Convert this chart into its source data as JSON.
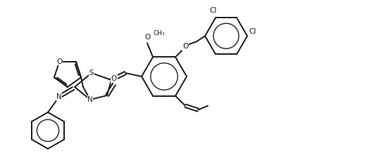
{
  "bg_color": "#ffffff",
  "line_color": "#1a1a1a",
  "line_width": 1.4,
  "figsize": [
    5.38,
    2.38
  ],
  "dpi": 100,
  "atoms": {
    "O_furan": "O",
    "N_imine": "N",
    "S_thiazo": "S",
    "N_thiazo": "N",
    "O_carbonyl": "O",
    "O_methoxy": "O",
    "O_ether": "O",
    "Cl1": "Cl",
    "Cl2": "Cl"
  }
}
